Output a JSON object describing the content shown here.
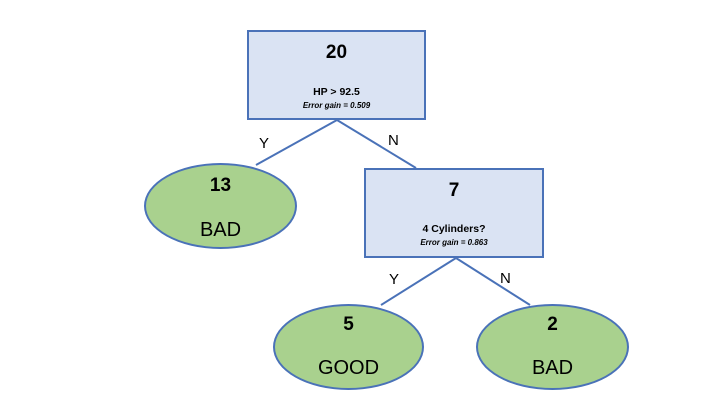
{
  "colors": {
    "box_fill": "#dae3f3",
    "leaf_fill": "#a9d18e",
    "stroke": "#4a72b8"
  },
  "root": {
    "count": "20",
    "condition": "HP > 92.5",
    "error_gain": "Error gain = 0.509"
  },
  "root_yes": {
    "count": "13",
    "class": "BAD"
  },
  "split2": {
    "count": "7",
    "condition": "4 Cylinders?",
    "error_gain": "Error gain = 0.863"
  },
  "split2_yes": {
    "count": "5",
    "class": "GOOD"
  },
  "split2_no": {
    "count": "2",
    "class": "BAD"
  },
  "edge_labels": {
    "root_yes": "Y",
    "root_no": "N",
    "split2_yes": "Y",
    "split2_no": "N"
  }
}
